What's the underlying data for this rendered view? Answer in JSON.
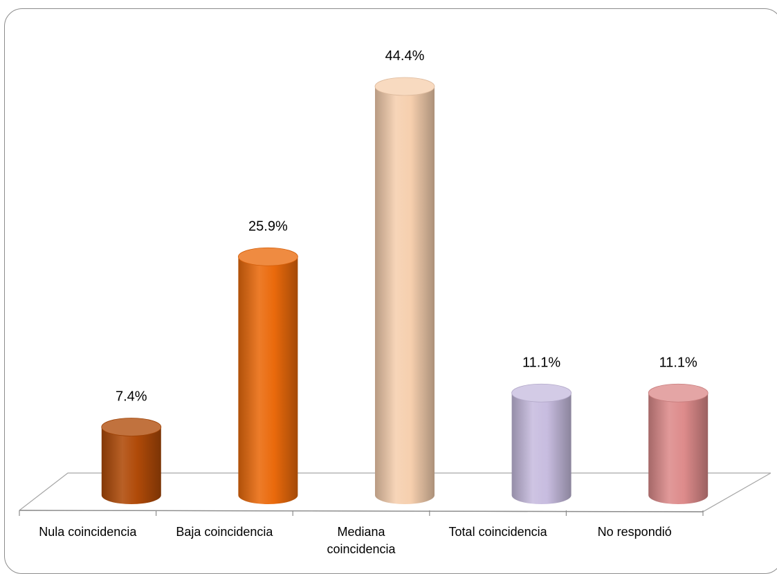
{
  "chart_data": {
    "type": "bar",
    "categories": [
      [
        "Nula coincidencia"
      ],
      [
        "Baja coincidencia"
      ],
      [
        "Mediana",
        "coincidencia"
      ],
      [
        "Total coincidencia"
      ],
      [
        "No respondió"
      ]
    ],
    "values": [
      7.4,
      25.9,
      44.4,
      11.1,
      11.1
    ],
    "value_labels": [
      "7.4%",
      "25.9%",
      "44.4%",
      "11.1%",
      "11.1%"
    ],
    "unit": "%",
    "title": "",
    "xlabel": "",
    "ylabel": "",
    "ylim": [
      0,
      50
    ],
    "grid": false,
    "legend": "none",
    "style": "3d-cylinder",
    "colors": [
      "#b04a08",
      "#ea6a0c",
      "#f6cfae",
      "#c7bcdf",
      "#dd8b8b"
    ]
  }
}
